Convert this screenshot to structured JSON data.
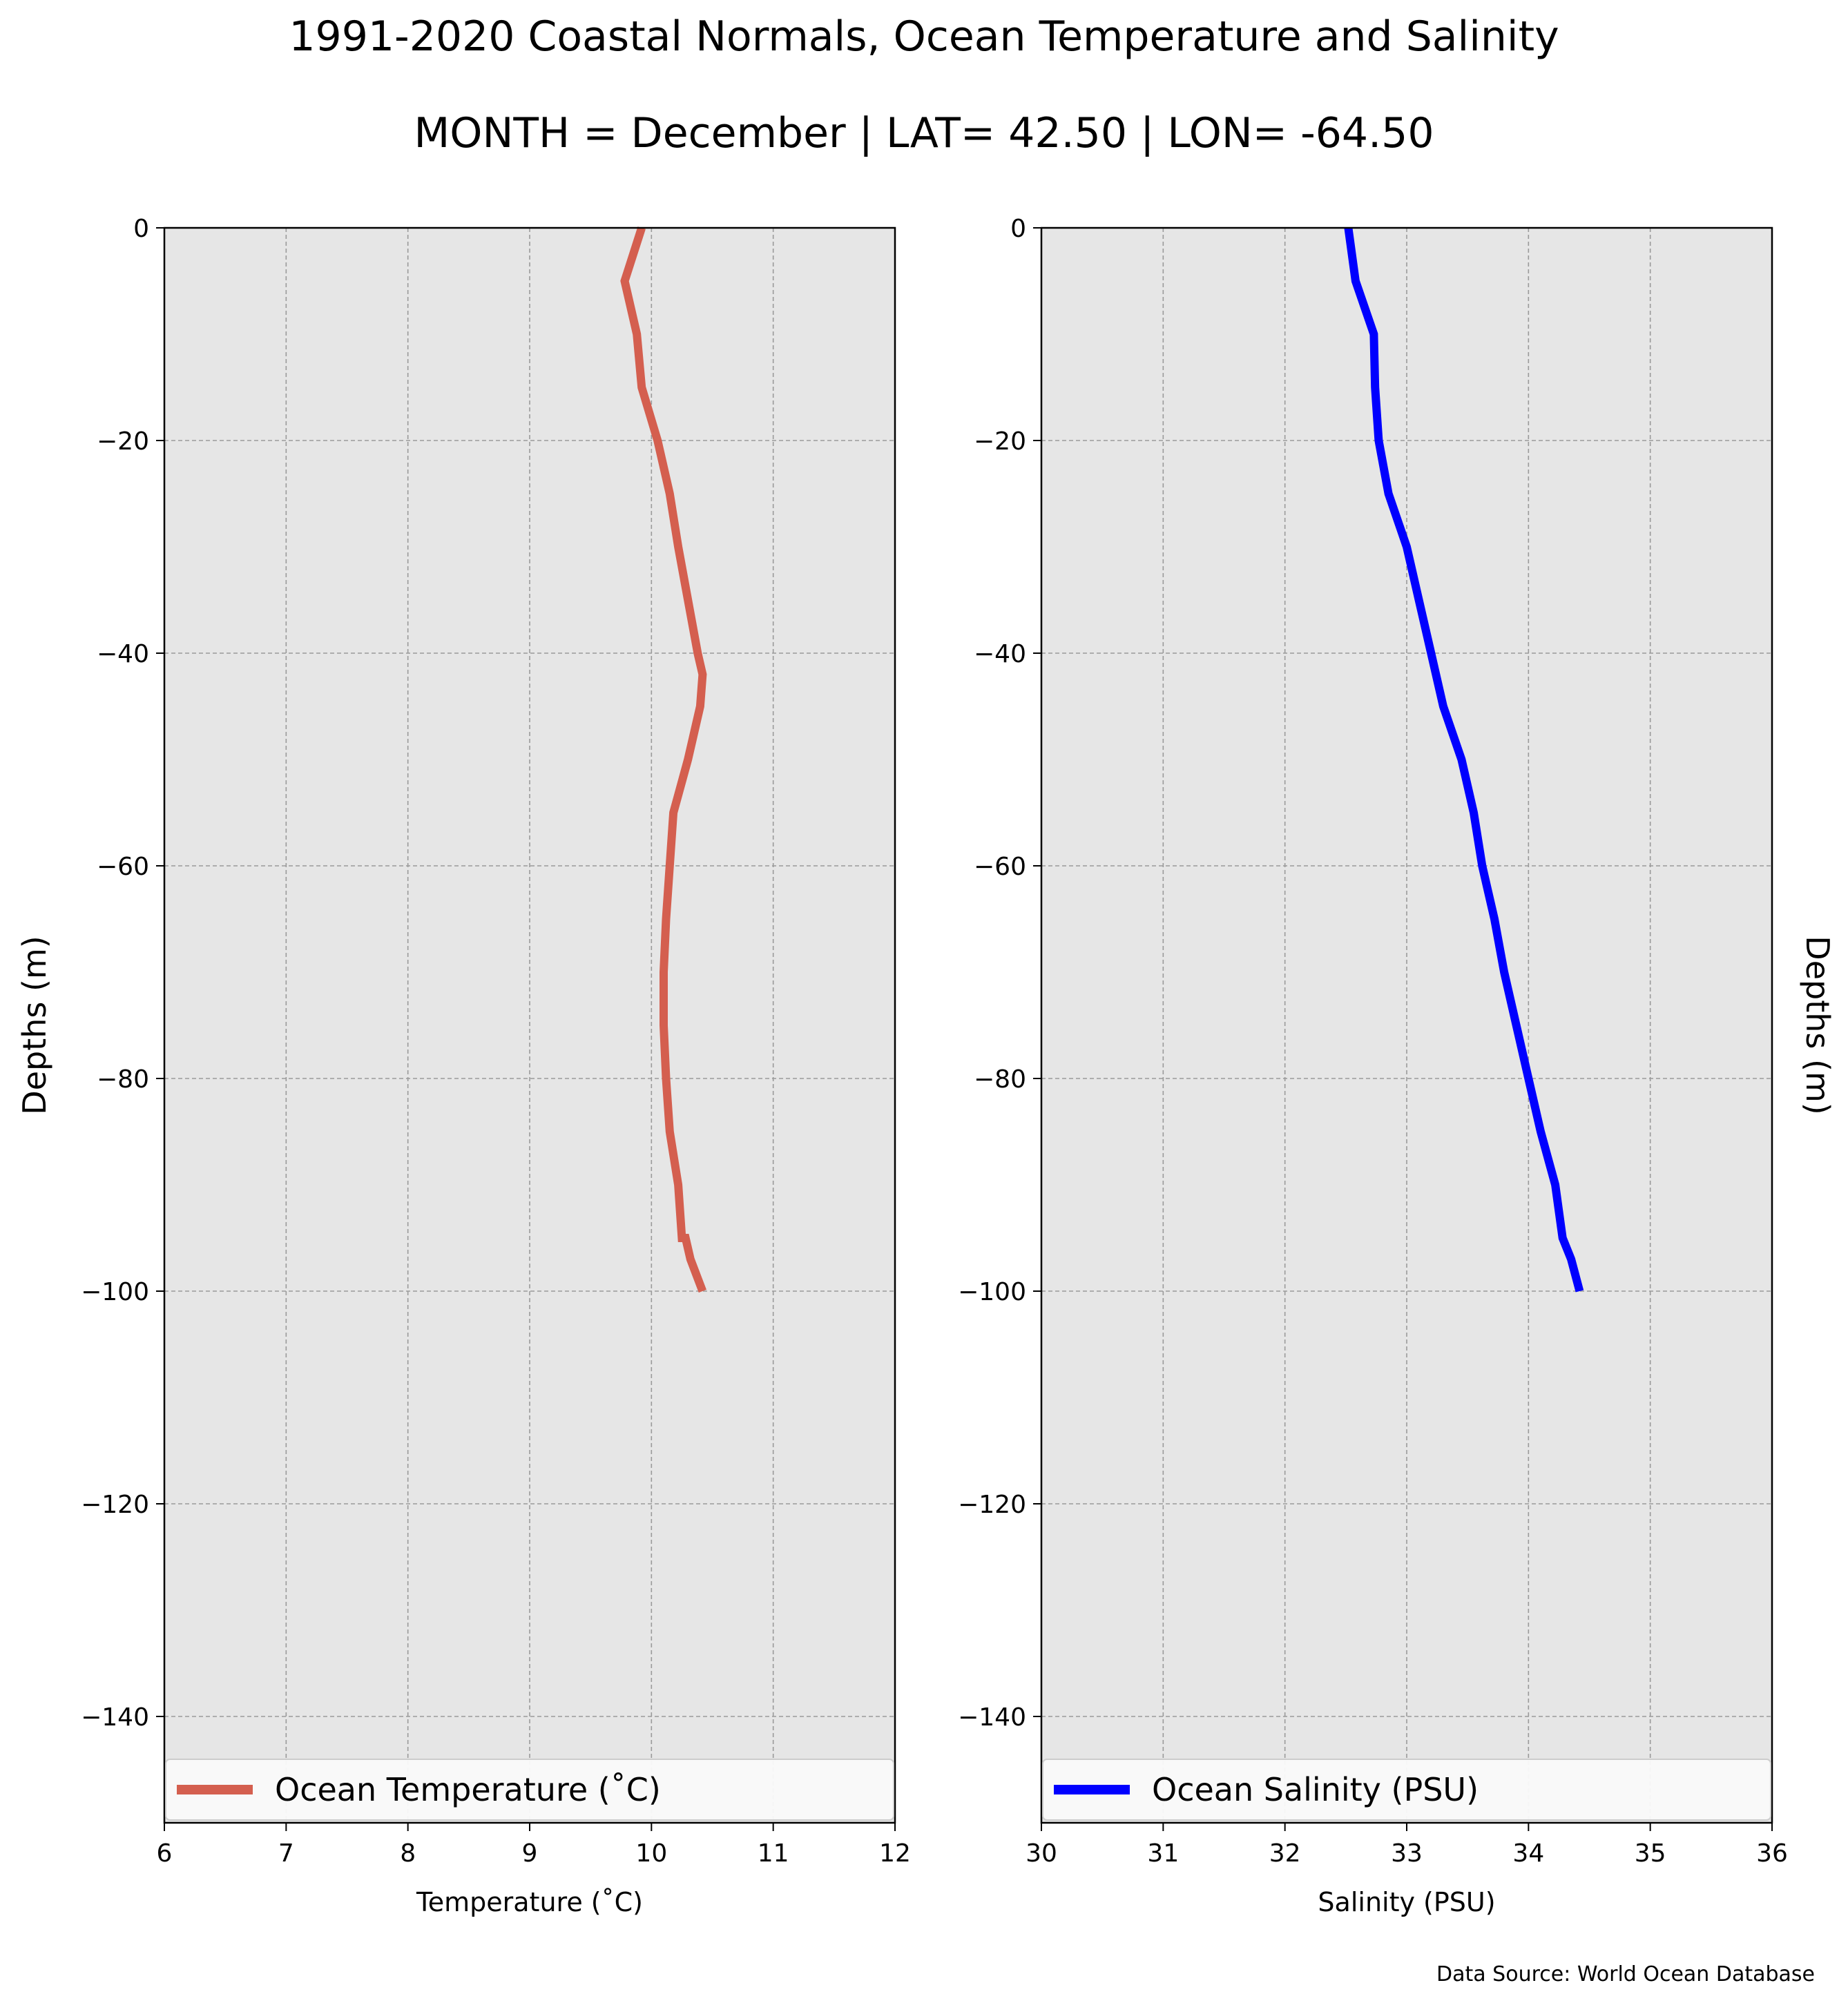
{
  "title": "1991-2020 Coastal Normals, Ocean Temperature and Salinity",
  "subtitle": "MONTH = December | LAT= 42.50 | LON= -64.50",
  "source": "Data Source: World Ocean Database",
  "colors": {
    "background": "#ffffff",
    "plot_background": "#e6e6e6",
    "grid": "#9a9a9a",
    "temperature_line": "#d45f4f",
    "salinity_line": "#0000ff"
  },
  "chart_data": [
    {
      "type": "line",
      "name": "temperature-panel",
      "xlabel": "Temperature ($^\\circ$C)",
      "xlabel_display": "Temperature (˚C)",
      "ylabel": "Depths (m)",
      "xlim": [
        6,
        12
      ],
      "ylim": [
        -150,
        0
      ],
      "xticks": [
        6,
        7,
        8,
        9,
        10,
        11,
        12
      ],
      "yticks": [
        0,
        -20,
        -40,
        -60,
        -80,
        -100,
        -120,
        -140
      ],
      "ytick_labels": [
        "0",
        "−20",
        "−40",
        "−60",
        "−80",
        "−100",
        "−120",
        "−140"
      ],
      "grid": true,
      "legend": "bottom",
      "series": [
        {
          "name": "Ocean Temperature (˚C)",
          "color": "#d45f4f",
          "x": [
            9.92,
            9.78,
            9.88,
            9.92,
            10.05,
            10.15,
            10.22,
            10.3,
            10.38,
            10.42,
            10.4,
            10.3,
            10.18,
            10.15,
            10.12,
            10.1,
            10.1,
            10.12,
            10.15,
            10.22,
            10.25,
            10.28,
            10.32,
            10.42
          ],
          "y": [
            0,
            -5,
            -10,
            -15,
            -20,
            -25,
            -30,
            -35,
            -40,
            -42,
            -45,
            -50,
            -55,
            -60,
            -65,
            -70,
            -75,
            -80,
            -85,
            -90,
            -95,
            -95,
            -97,
            -100
          ]
        }
      ]
    },
    {
      "type": "line",
      "name": "salinity-panel",
      "xlabel": "Salinity (PSU)",
      "ylabel": "Depths (m)",
      "xlim": [
        30,
        36
      ],
      "ylim": [
        -150,
        0
      ],
      "xticks": [
        30,
        31,
        32,
        33,
        34,
        35,
        36
      ],
      "yticks": [
        0,
        -20,
        -40,
        -60,
        -80,
        -100,
        -120,
        -140
      ],
      "ytick_labels": [
        "0",
        "−20",
        "−40",
        "−60",
        "−80",
        "−100",
        "−120",
        "−140"
      ],
      "grid": true,
      "legend": "bottom",
      "series": [
        {
          "name": "Ocean Salinity (PSU)",
          "color": "#0000ff",
          "x": [
            32.52,
            32.58,
            32.73,
            32.74,
            32.77,
            32.85,
            33.0,
            33.1,
            33.2,
            33.3,
            33.45,
            33.55,
            33.62,
            33.72,
            33.8,
            33.9,
            34.0,
            34.1,
            34.22,
            34.28,
            34.35,
            34.42
          ],
          "y": [
            0,
            -5,
            -10,
            -15,
            -20,
            -25,
            -30,
            -35,
            -40,
            -45,
            -50,
            -55,
            -60,
            -65,
            -70,
            -75,
            -80,
            -85,
            -90,
            -95,
            -97,
            -100
          ]
        }
      ]
    }
  ]
}
